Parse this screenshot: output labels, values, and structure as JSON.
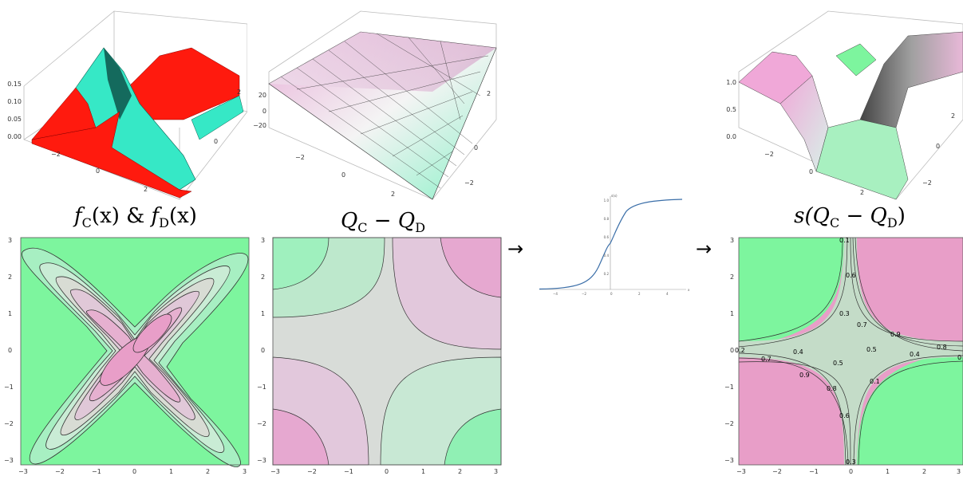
{
  "titles": {
    "f": {
      "a": "f",
      "a_sub": "C",
      "b": "(x) & ",
      "c": "f",
      "c_sub": "D",
      "d": "(x)"
    },
    "q": {
      "a": "Q",
      "a_sub": "C",
      "b": " − ",
      "c": "Q",
      "c_sub": "D"
    },
    "s": {
      "a": "s(",
      "b": "Q",
      "b_sub": "C",
      "c": " − ",
      "d": "Q",
      "d_sub": "D",
      "e": ")"
    }
  },
  "arrows": [
    "→",
    "→"
  ],
  "surface1": {
    "z_ticks": [
      "0.15",
      "0.10",
      "0.05",
      "0.00"
    ],
    "x_ticks": [
      "−2",
      "0",
      "2"
    ],
    "y_ticks": [
      "2",
      "0",
      "−2"
    ]
  },
  "surface2": {
    "z_ticks": [
      "20",
      "0",
      "−20"
    ],
    "x_ticks": [
      "−2",
      "0",
      "2"
    ],
    "y_ticks": [
      "2",
      "0",
      "−2"
    ]
  },
  "surface3": {
    "z_ticks": [
      "1.0",
      "0.5",
      "0.0"
    ],
    "x_ticks": [
      "−2",
      "0",
      "2"
    ],
    "y_ticks": [
      "2",
      "0",
      "−2"
    ]
  },
  "sigmoid": {
    "ylabel": "s(x)",
    "xlabel": "x",
    "x_ticks": [
      "−4",
      "−2",
      "0",
      "2",
      "4"
    ],
    "y_ticks": [
      "1.0",
      "0.8",
      "0.6",
      "0.4",
      "0.2"
    ]
  },
  "contour1": {
    "x_ticks": [
      "−3",
      "−2",
      "−1",
      "0",
      "1",
      "2",
      "3"
    ],
    "y_ticks": [
      "3",
      "2",
      "1",
      "0",
      "−1",
      "−2",
      "−3"
    ]
  },
  "contour2": {
    "x_ticks": [
      "−3",
      "−2",
      "−1",
      "0",
      "1",
      "2",
      "3"
    ],
    "y_ticks": [
      "3",
      "2",
      "1",
      "0",
      "−1",
      "−2",
      "−3"
    ]
  },
  "contour3": {
    "x_ticks": [
      "−3",
      "−2",
      "−1",
      "0",
      "1",
      "2",
      "3"
    ],
    "y_ticks": [
      "3",
      "2",
      "1",
      "0",
      "−1",
      "−2",
      "−3"
    ],
    "labels": [
      "0.1",
      "0.6",
      "0.3",
      "0.7",
      "0.9",
      "0.5",
      "0.4",
      "0.8",
      "0.2",
      "0.7",
      "0.4",
      "0.5",
      "0.9",
      "0.8",
      "0.1",
      "0.6",
      "0.3",
      "0"
    ]
  },
  "colors": {
    "green": "#7df59e",
    "pink": "#e89ec8",
    "red": "#ff1a0e",
    "teal": "#36e8c6",
    "curve": "#3a6ea8"
  }
}
